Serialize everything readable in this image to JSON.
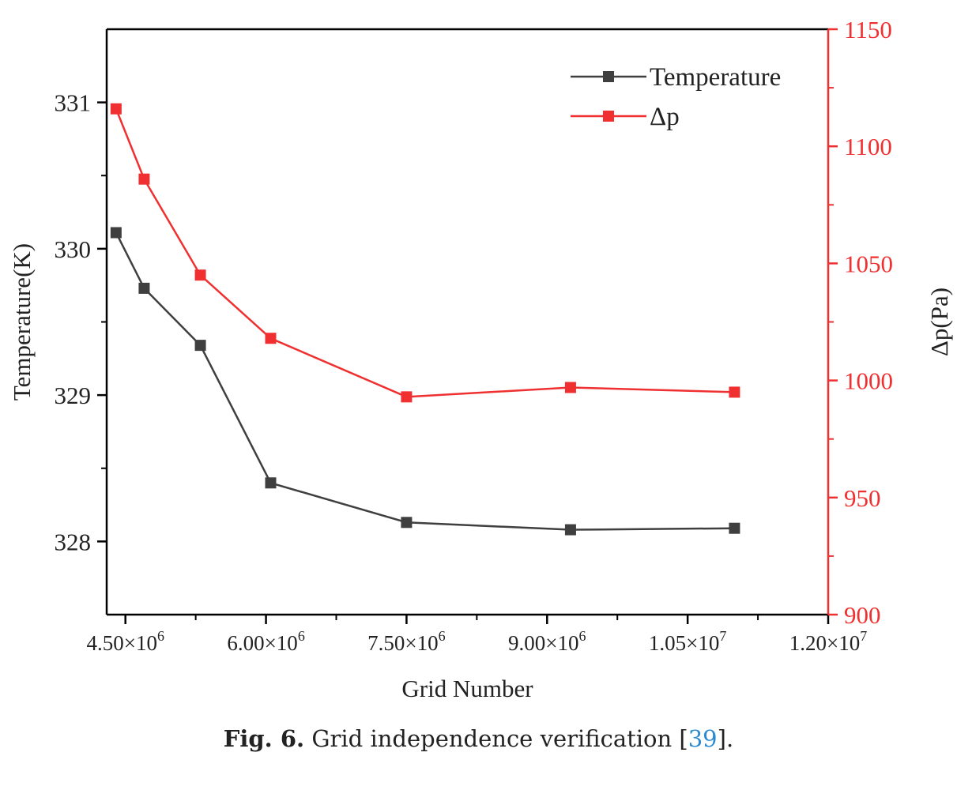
{
  "chart_data": {
    "type": "line",
    "xlabel": "Grid Number",
    "ylabel_left": "Temperature(K)",
    "ylabel_right": "Δp(Pa)",
    "xlim": [
      4300000,
      12000000
    ],
    "x_ticks": [
      {
        "value": 4500000,
        "mantissa": "4.50×10",
        "exp": "6"
      },
      {
        "value": 6000000,
        "mantissa": "6.00×10",
        "exp": "6"
      },
      {
        "value": 7500000,
        "mantissa": "7.50×10",
        "exp": "6"
      },
      {
        "value": 9000000,
        "mantissa": "9.00×10",
        "exp": "6"
      },
      {
        "value": 10500000,
        "mantissa": "1.05×10",
        "exp": "7"
      },
      {
        "value": 12000000,
        "mantissa": "1.20×10",
        "exp": "7"
      }
    ],
    "ylim_left": [
      327.5,
      331.5
    ],
    "yticks_left": [
      328,
      329,
      330,
      331
    ],
    "ylim_right": [
      900,
      1150
    ],
    "yticks_right": [
      900,
      950,
      1000,
      1050,
      1100,
      1150
    ],
    "legend_position": "top-right",
    "grid": false,
    "series": [
      {
        "name": "Temperature",
        "axis": "left",
        "color": "#3f3f3f",
        "points": [
          [
            4400000,
            330.11
          ],
          [
            4700000,
            329.73
          ],
          [
            5300000,
            329.34
          ],
          [
            6050000,
            328.4
          ],
          [
            7500000,
            328.13
          ],
          [
            9250000,
            328.08
          ],
          [
            11000000,
            328.09
          ]
        ]
      },
      {
        "name": "Δp",
        "axis": "right",
        "color": "#f03030",
        "points": [
          [
            4400000,
            1116
          ],
          [
            4700000,
            1086
          ],
          [
            5300000,
            1045
          ],
          [
            6050000,
            1018
          ],
          [
            7500000,
            993
          ],
          [
            9250000,
            997
          ],
          [
            11000000,
            995
          ]
        ]
      }
    ]
  },
  "caption": {
    "label": "Fig. 6.",
    "text": " Grid independence verification [",
    "ref": "39",
    "end": "]."
  }
}
